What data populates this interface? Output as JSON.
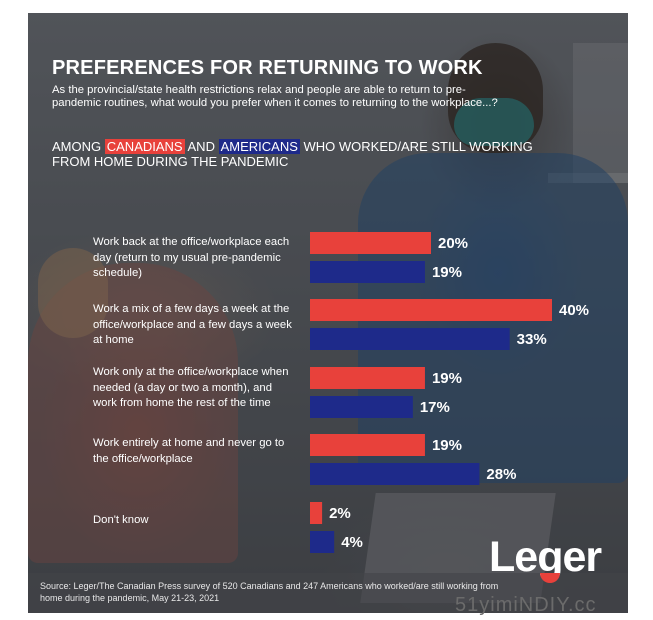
{
  "title": "PREFERENCES FOR RETURNING TO WORK",
  "subtitle": "As the provincial/state health restrictions relax and people are able to return to pre-pandemic routines, what would you prefer when it comes to returning to the workplace...?",
  "among": {
    "prefix": "AMONG",
    "canadians": "CANADIANS",
    "and": "AND",
    "americans": "AMERICANS",
    "suffix": "WHO WORKED/ARE STILL WORKING FROM HOME DURING THE PANDEMIC"
  },
  "colors": {
    "canadians": "#e8413b",
    "americans": "#1e2a8a"
  },
  "chart_data": {
    "type": "bar",
    "orientation": "horizontal",
    "categories": [
      "Work back at the office/workplace each day (return to my usual pre-pandemic schedule)",
      "Work a mix of a few days a week at the office/workplace and a few days a week at home",
      "Work only at the office/workplace when needed (a day or two a month), and work from home the rest of the time",
      "Work entirely at home and never go to the office/workplace",
      "Don't know"
    ],
    "series": [
      {
        "name": "CANADIANS",
        "color": "#e8413b",
        "values": [
          20,
          40,
          19,
          19,
          2
        ],
        "labels": [
          "20%",
          "40%",
          "19%",
          "19%",
          "2%"
        ]
      },
      {
        "name": "AMERICANS",
        "color": "#1e2a8a",
        "values": [
          19,
          33,
          17,
          28,
          4
        ],
        "labels": [
          "19%",
          "33%",
          "17%",
          "28%",
          "4%"
        ]
      }
    ],
    "unit": "%",
    "xlim": [
      0,
      40
    ],
    "grid": false,
    "legend": "inline in subtitle"
  },
  "source": "Source: Leger/The Canadian Press survey of 520 Canadians and 247 Americans who worked/are still working from home during the pandemic, May 21-23, 2021",
  "logo": {
    "prefix": "Le",
    "g": "g",
    "suffix": "er"
  },
  "watermark": "51yimiNDIY.cc"
}
